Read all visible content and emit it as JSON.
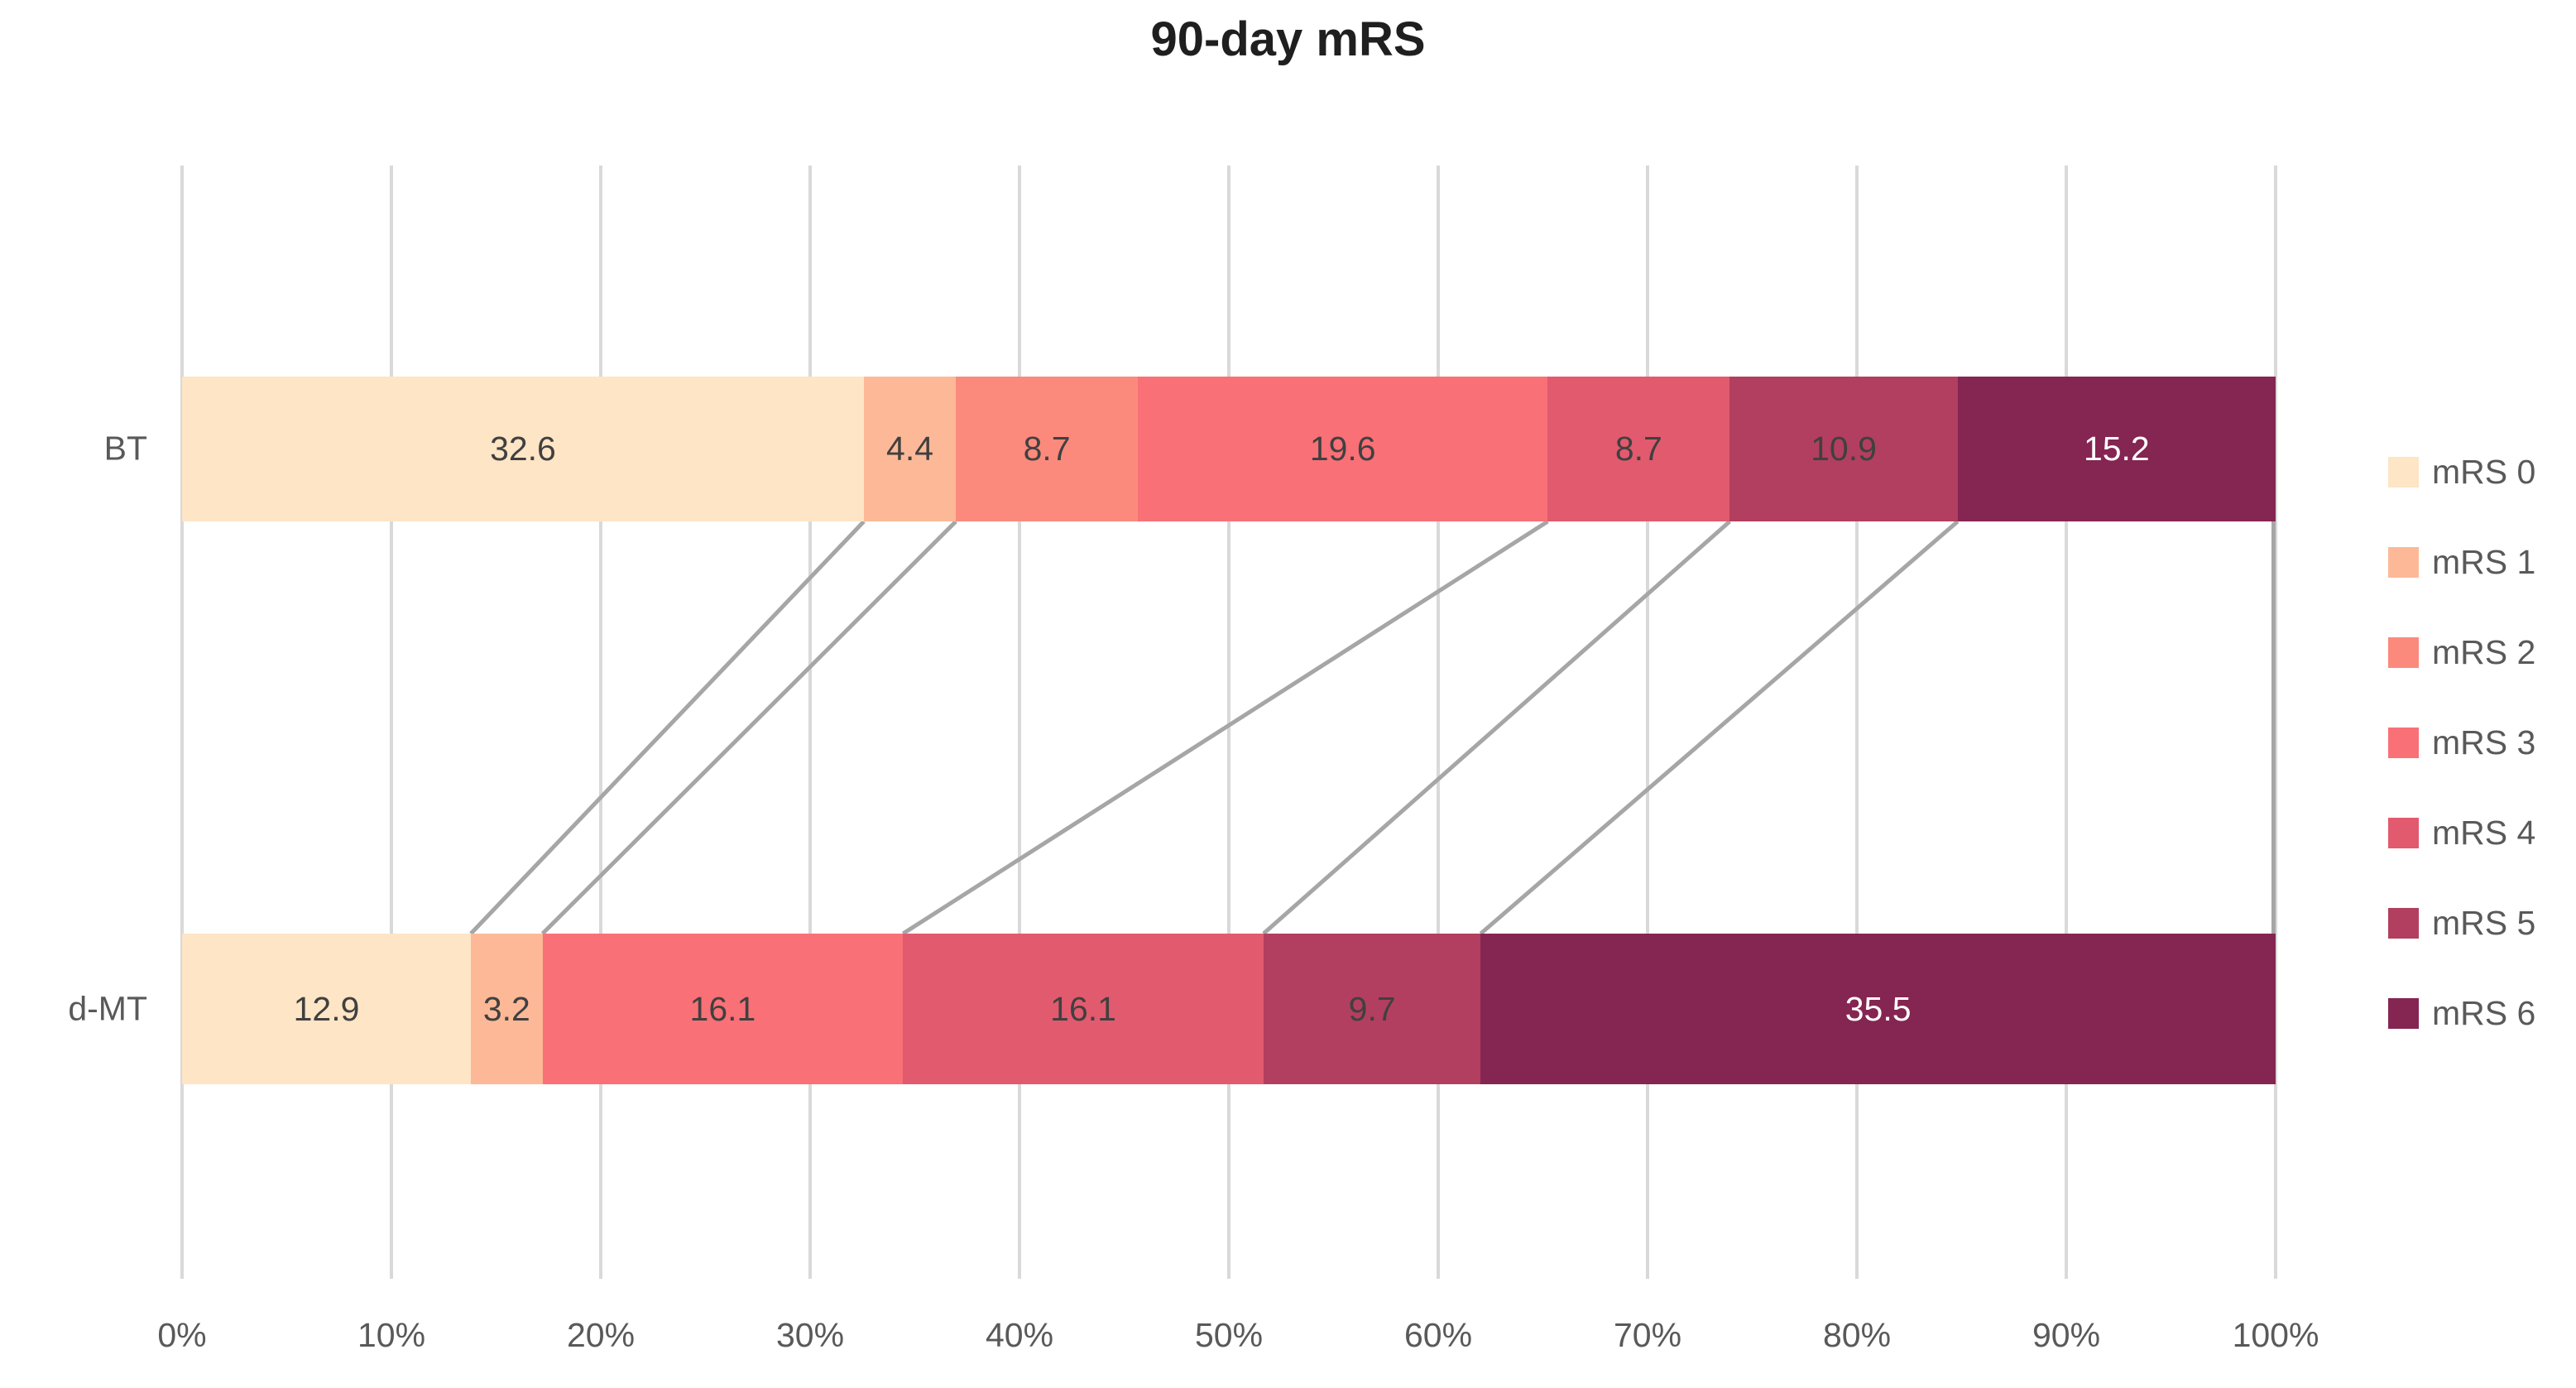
{
  "title": "90-day mRS",
  "chart_data": {
    "type": "bar",
    "variant": "horizontal-stacked-100",
    "title": "90-day mRS",
    "categories": [
      "BT",
      "d-MT"
    ],
    "series": [
      {
        "name": "mRS 0",
        "color": "#fde5c5",
        "values": [
          32.6,
          12.9
        ]
      },
      {
        "name": "mRS 1",
        "color": "#fdb997",
        "values": [
          4.4,
          3.2
        ]
      },
      {
        "name": "mRS 2",
        "color": "#fb8a7d",
        "values": [
          8.7,
          0
        ]
      },
      {
        "name": "mRS 3",
        "color": "#f97077",
        "values": [
          19.6,
          16.1
        ]
      },
      {
        "name": "mRS 4",
        "color": "#e25a6e",
        "values": [
          8.7,
          16.1
        ]
      },
      {
        "name": "mRS 5",
        "color": "#b23f5f",
        "values": [
          10.9,
          9.7
        ]
      },
      {
        "name": "mRS 6",
        "color": "#852552",
        "values": [
          15.2,
          35.5
        ]
      }
    ],
    "x_ticks": [
      "0%",
      "10%",
      "20%",
      "30%",
      "40%",
      "50%",
      "60%",
      "70%",
      "80%",
      "90%",
      "100%"
    ],
    "xlim": [
      0,
      100
    ],
    "grid": true,
    "legend_position": "right",
    "colors": {
      "gridline": "#d9d9d9",
      "connector_line": "#a6a6a6",
      "axis_text": "#595959",
      "data_label": "#404040",
      "data_label_on_dark": "#ffffff"
    }
  }
}
